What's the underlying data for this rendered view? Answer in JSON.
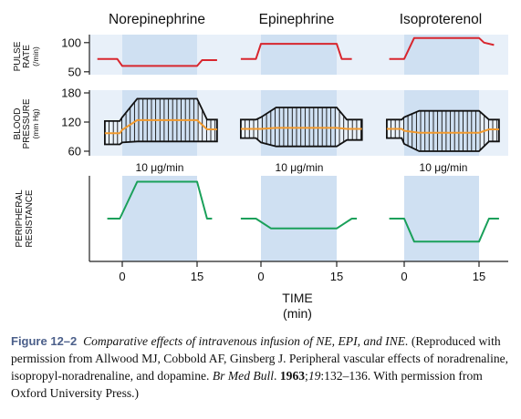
{
  "chart_data": {
    "type": "line",
    "drugs": [
      "Norepinephrine",
      "Epinephrine",
      "Isoproterenol"
    ],
    "infusion": {
      "label": "10 μg/min",
      "start_min": 0,
      "end_min": 15
    },
    "x_axis": {
      "title_line1": "TIME",
      "title_line2": "(min)",
      "tick_labels": [
        "0",
        "15",
        "0",
        "15",
        "0",
        "15"
      ]
    },
    "panels": [
      {
        "id": "pulse",
        "ylabel_line1": "PULSE",
        "ylabel_line2": "RATE",
        "ylabel_line3": "(/min)",
        "yticks": [
          100,
          50
        ],
        "ylim": [
          45,
          112
        ],
        "series": [
          {
            "drug": "Norepinephrine",
            "x": [
              -5,
              -1,
              0,
              15,
              16,
              19
            ],
            "y": [
              72,
              72,
              60,
              60,
              70,
              70
            ]
          },
          {
            "drug": "Epinephrine",
            "x": [
              -4,
              -1,
              0,
              15,
              16,
              18
            ],
            "y": [
              72,
              72,
              98,
              98,
              72,
              72
            ]
          },
          {
            "drug": "Isoproterenol",
            "x": [
              -3,
              0,
              2,
              15,
              16,
              18
            ],
            "y": [
              72,
              72,
              108,
              108,
              100,
              96
            ]
          }
        ]
      },
      {
        "id": "bp",
        "ylabel_line1": "BLOOD",
        "ylabel_line2": "PRESSURE",
        "ylabel_line3": "(mm Hg)",
        "yticks": [
          180,
          120,
          60
        ],
        "ylim": [
          58,
          182
        ],
        "series": [
          {
            "drug": "Norepinephrine",
            "x": [
              -3.5,
              -0.5,
              0,
              3,
              15,
              17,
              19
            ],
            "systolic": [
              122,
              122,
              130,
              168,
              168,
              125,
              125
            ],
            "diastolic": [
              74,
              74,
              78,
              80,
              80,
              80,
              80
            ],
            "mean": [
              97,
              97,
              104,
              124,
              124,
              105,
              105
            ]
          },
          {
            "drug": "Epinephrine",
            "x": [
              -4,
              -1,
              0,
              3,
              15,
              17,
              20
            ],
            "systolic": [
              125,
              125,
              130,
              150,
              150,
              125,
              125
            ],
            "diastolic": [
              87,
              87,
              78,
              70,
              70,
              83,
              83
            ],
            "mean": [
              106,
              106,
              106,
              108,
              108,
              106,
              106
            ]
          },
          {
            "drug": "Isoproterenol",
            "x": [
              -3.5,
              -0.5,
              0,
              3,
              15,
              17,
              19
            ],
            "systolic": [
              125,
              125,
              130,
              143,
              143,
              125,
              125
            ],
            "diastolic": [
              87,
              87,
              75,
              60,
              60,
              80,
              80
            ],
            "mean": [
              106,
              106,
              102,
              98,
              98,
              105,
              105
            ]
          }
        ]
      },
      {
        "id": "resistance",
        "ylabel_line1": "PERIPHERAL",
        "ylabel_line2": "RESISTANCE",
        "ylim": [
          0,
          100
        ],
        "series": [
          {
            "drug": "Norepinephrine",
            "x": [
              -3,
              -0.5,
              3,
              15,
              17,
              18
            ],
            "y": [
              50,
              50,
              95,
              95,
              50,
              50
            ]
          },
          {
            "drug": "Epinephrine",
            "x": [
              -4,
              -1,
              2,
              15,
              18,
              19
            ],
            "y": [
              50,
              50,
              38,
              38,
              50,
              50
            ]
          },
          {
            "drug": "Isoproterenol",
            "x": [
              -3,
              0,
              2,
              15,
              17,
              19
            ],
            "y": [
              50,
              50,
              22,
              22,
              50,
              50
            ]
          }
        ]
      }
    ],
    "colors": {
      "band": "#cfe0f2",
      "bg_light": "#e8f0f9",
      "pulse_line": "#d8262e",
      "mean_line": "#f29a2e",
      "resistance_line": "#1aa05a",
      "outline": "#111111"
    }
  },
  "caption": {
    "label": "Figure 12–2",
    "title": "Comparative effects of intravenous infusion of NE, EPI, and INE.",
    "text_1": "(Reproduced with permission from Allwood MJ, Cobbold AF, Ginsberg J. Peripheral vascular effects of noradrenaline, isopropyl-noradrenaline, and dopamine.",
    "journal": "Br Med Bull",
    "year": "1963",
    "volume": "19",
    "pages": ":132–136. With permission from Oxford University Press.)"
  }
}
